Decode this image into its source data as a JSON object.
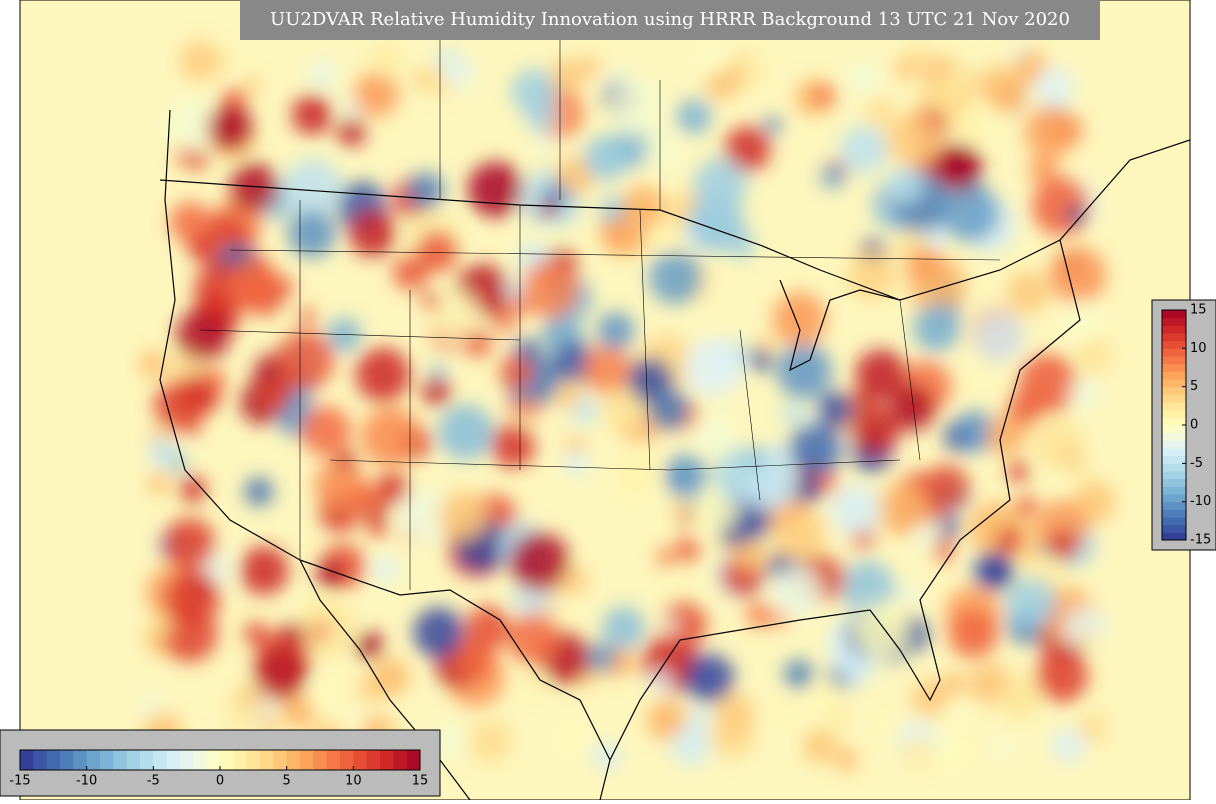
{
  "title": "UU2DVAR Relative Humidity Innovation using HRRR Background 13 UTC 21 Nov 2020",
  "colorbar": {
    "min": -15,
    "max": 15,
    "ticks": [
      -15,
      -10,
      -5,
      0,
      5,
      10,
      15
    ],
    "colors": [
      "#313695",
      "#4575b4",
      "#74add1",
      "#abd9e9",
      "#e0f3f8",
      "#ffffbf",
      "#fee090",
      "#fdae61",
      "#f46d43",
      "#d73027",
      "#a50026"
    ]
  }
}
